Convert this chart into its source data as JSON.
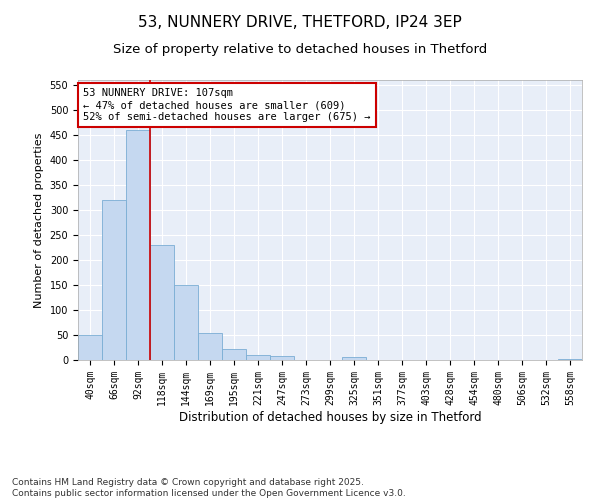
{
  "title": "53, NUNNERY DRIVE, THETFORD, IP24 3EP",
  "subtitle": "Size of property relative to detached houses in Thetford",
  "xlabel": "Distribution of detached houses by size in Thetford",
  "ylabel": "Number of detached properties",
  "categories": [
    "40sqm",
    "66sqm",
    "92sqm",
    "118sqm",
    "144sqm",
    "169sqm",
    "195sqm",
    "221sqm",
    "247sqm",
    "273sqm",
    "299sqm",
    "325sqm",
    "351sqm",
    "377sqm",
    "403sqm",
    "428sqm",
    "454sqm",
    "480sqm",
    "506sqm",
    "532sqm",
    "558sqm"
  ],
  "values": [
    50,
    320,
    460,
    230,
    150,
    55,
    22,
    10,
    8,
    1,
    0,
    6,
    0,
    0,
    0,
    0,
    0,
    0,
    0,
    0,
    3
  ],
  "bar_color": "#c5d8f0",
  "bar_edge_color": "#7aadd4",
  "vline_x": 2.5,
  "vline_color": "#cc0000",
  "annotation_text": "53 NUNNERY DRIVE: 107sqm\n← 47% of detached houses are smaller (609)\n52% of semi-detached houses are larger (675) →",
  "annotation_box_color": "#ffffff",
  "annotation_box_edge": "#cc0000",
  "ylim": [
    0,
    560
  ],
  "yticks": [
    0,
    50,
    100,
    150,
    200,
    250,
    300,
    350,
    400,
    450,
    500,
    550
  ],
  "bg_color": "#e8eef8",
  "footnote": "Contains HM Land Registry data © Crown copyright and database right 2025.\nContains public sector information licensed under the Open Government Licence v3.0.",
  "title_fontsize": 11,
  "subtitle_fontsize": 9.5,
  "xlabel_fontsize": 8.5,
  "ylabel_fontsize": 8,
  "tick_fontsize": 7,
  "annotation_fontsize": 7.5,
  "footnote_fontsize": 6.5
}
